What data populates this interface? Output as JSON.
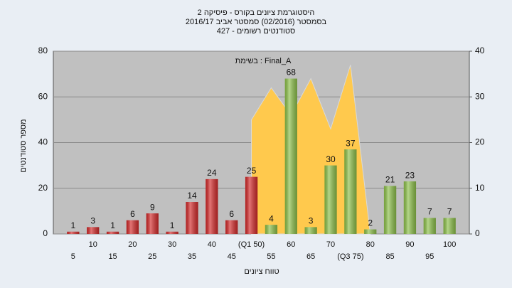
{
  "chart_data": {
    "type": "bar",
    "title": "היסטוגרמת ציונים בקורס - פיסיקה 2",
    "subtitle": [
      "בסמסטר  (02/2016)  סמסטר אביב 2016/17",
      "סטודנטים רשומים - 427"
    ],
    "annotation": "בשימת : Final_A",
    "x_label": "טווח ציונים",
    "y_label": "מספר סטודנטים",
    "categories": [
      "5",
      "10",
      "15",
      "20",
      "25",
      "30",
      "35",
      "40",
      "45",
      "(Q1 50)",
      "55",
      "60",
      "65",
      "70",
      "(Q3 75)",
      "80",
      "85",
      "90",
      "95",
      "100"
    ],
    "series": [
      {
        "name": "Final_A",
        "values": [
          1,
          3,
          1,
          6,
          9,
          1,
          14,
          24,
          6,
          25,
          4,
          68,
          3,
          30,
          37,
          2,
          21,
          23,
          7,
          7
        ],
        "colors": [
          "#d42a2a",
          "#d42a2a",
          "#d42a2a",
          "#d42a2a",
          "#d42a2a",
          "#d42a2a",
          "#d42a2a",
          "#d42a2a",
          "#d42a2a",
          "#d42a2a",
          "#8dc14a",
          "#8dc14a",
          "#8dc14a",
          "#8dc14a",
          "#8dc14a",
          "#8dc14a",
          "#8dc14a",
          "#8dc14a",
          "#8dc14a",
          "#8dc14a"
        ]
      },
      {
        "type": "area",
        "axis": "y2",
        "color": "#ffc94d",
        "values": [
          null,
          null,
          null,
          null,
          null,
          null,
          null,
          null,
          null,
          25,
          32,
          26,
          34,
          23,
          37,
          0,
          null,
          null,
          null,
          null
        ]
      }
    ],
    "ylim": [
      0,
      80
    ],
    "yticks": [
      0,
      20,
      40,
      60,
      80
    ],
    "y2lim": [
      0,
      40
    ],
    "y2ticks": [
      0,
      10,
      20,
      30,
      40
    ],
    "grid": true
  }
}
